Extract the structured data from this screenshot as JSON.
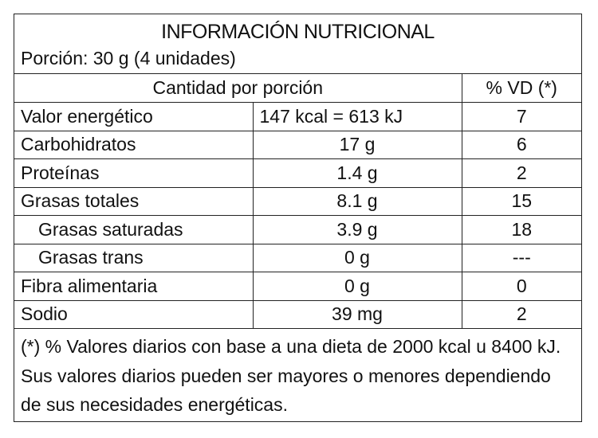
{
  "title": "INFORMACIÓN NUTRICIONAL",
  "portion": "Porción: 30 g (4 unidades)",
  "header": {
    "amount": "Cantidad por porción",
    "vd": "% VD (*)"
  },
  "rows": [
    {
      "name": "Valor energético",
      "amount": "147 kcal = 613 kJ",
      "vd": "7"
    },
    {
      "name": "Carbohidratos",
      "amount": "17 g",
      "vd": "6"
    },
    {
      "name": "Proteínas",
      "amount": "1.4 g",
      "vd": "2"
    },
    {
      "name": "Grasas totales",
      "amount": "8.1 g",
      "vd": "15"
    },
    {
      "name": "Grasas saturadas",
      "amount": "3.9 g",
      "vd": "18"
    },
    {
      "name": "Grasas trans",
      "amount": "0 g",
      "vd": "---"
    },
    {
      "name": "Fibra alimentaria",
      "amount": "0 g",
      "vd": "0"
    },
    {
      "name": "Sodio",
      "amount": "39 mg",
      "vd": "2"
    }
  ],
  "footnote": "(*) % Valores diarios con base a una dieta de 2000 kcal u 8400 kJ. Sus valores diarios pueden ser mayores o menores dependiendo de sus necesidades energéticas."
}
